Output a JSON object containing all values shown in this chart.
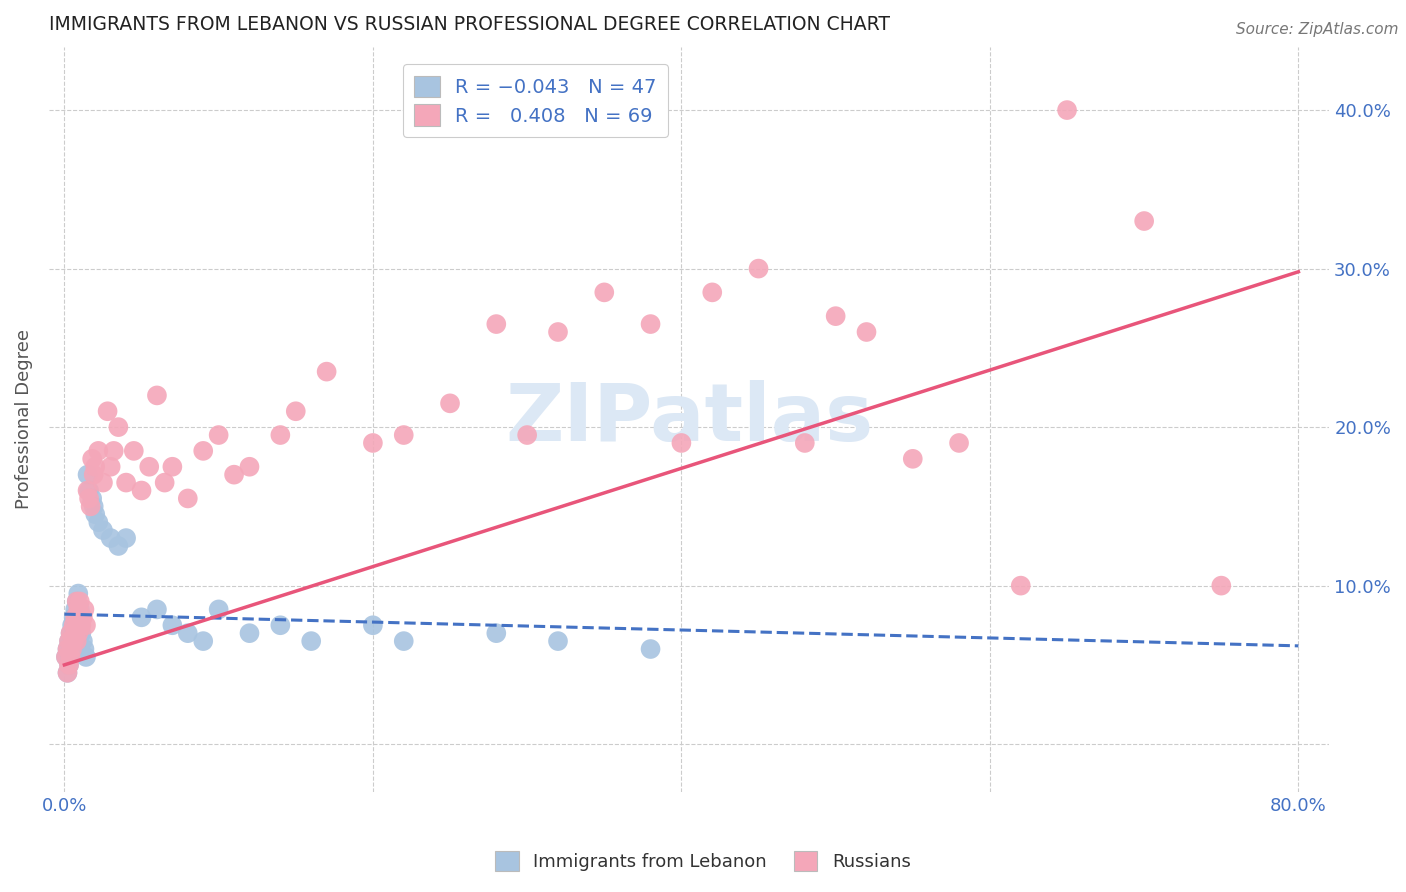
{
  "title": "IMMIGRANTS FROM LEBANON VS RUSSIAN PROFESSIONAL DEGREE CORRELATION CHART",
  "source": "Source: ZipAtlas.com",
  "ylabel": "Professional Degree",
  "color_lebanon": "#a8c4e0",
  "color_russia": "#f4a7b9",
  "trendline_lebanon_color": "#4472c4",
  "trendline_russia_color": "#e8557a",
  "watermark_color": "#dce8f5",
  "lebanon_x": [
    0.001,
    0.002,
    0.002,
    0.003,
    0.003,
    0.004,
    0.004,
    0.005,
    0.005,
    0.006,
    0.006,
    0.007,
    0.007,
    0.008,
    0.008,
    0.009,
    0.009,
    0.01,
    0.01,
    0.011,
    0.012,
    0.013,
    0.014,
    0.015,
    0.016,
    0.018,
    0.019,
    0.02,
    0.022,
    0.025,
    0.03,
    0.035,
    0.04,
    0.05,
    0.06,
    0.07,
    0.08,
    0.09,
    0.1,
    0.12,
    0.14,
    0.16,
    0.2,
    0.22,
    0.28,
    0.32,
    0.38
  ],
  "lebanon_y": [
    0.055,
    0.045,
    0.06,
    0.05,
    0.065,
    0.055,
    0.07,
    0.06,
    0.075,
    0.065,
    0.08,
    0.07,
    0.085,
    0.075,
    0.09,
    0.08,
    0.095,
    0.085,
    0.075,
    0.07,
    0.065,
    0.06,
    0.055,
    0.17,
    0.16,
    0.155,
    0.15,
    0.145,
    0.14,
    0.135,
    0.13,
    0.125,
    0.13,
    0.08,
    0.085,
    0.075,
    0.07,
    0.065,
    0.085,
    0.07,
    0.075,
    0.065,
    0.075,
    0.065,
    0.07,
    0.065,
    0.06
  ],
  "russia_x": [
    0.001,
    0.002,
    0.002,
    0.003,
    0.003,
    0.004,
    0.004,
    0.005,
    0.006,
    0.006,
    0.007,
    0.007,
    0.008,
    0.008,
    0.009,
    0.009,
    0.01,
    0.01,
    0.011,
    0.012,
    0.013,
    0.014,
    0.015,
    0.016,
    0.017,
    0.018,
    0.019,
    0.02,
    0.022,
    0.025,
    0.028,
    0.03,
    0.032,
    0.035,
    0.04,
    0.045,
    0.05,
    0.055,
    0.06,
    0.065,
    0.07,
    0.08,
    0.09,
    0.1,
    0.11,
    0.12,
    0.14,
    0.15,
    0.17,
    0.2,
    0.22,
    0.25,
    0.28,
    0.3,
    0.32,
    0.35,
    0.38,
    0.4,
    0.42,
    0.45,
    0.48,
    0.5,
    0.52,
    0.55,
    0.58,
    0.62,
    0.65,
    0.7,
    0.75
  ],
  "russia_y": [
    0.055,
    0.045,
    0.06,
    0.05,
    0.065,
    0.055,
    0.07,
    0.06,
    0.065,
    0.075,
    0.07,
    0.08,
    0.065,
    0.09,
    0.07,
    0.085,
    0.08,
    0.09,
    0.075,
    0.08,
    0.085,
    0.075,
    0.16,
    0.155,
    0.15,
    0.18,
    0.17,
    0.175,
    0.185,
    0.165,
    0.21,
    0.175,
    0.185,
    0.2,
    0.165,
    0.185,
    0.16,
    0.175,
    0.22,
    0.165,
    0.175,
    0.155,
    0.185,
    0.195,
    0.17,
    0.175,
    0.195,
    0.21,
    0.235,
    0.19,
    0.195,
    0.215,
    0.265,
    0.195,
    0.26,
    0.285,
    0.265,
    0.19,
    0.285,
    0.3,
    0.19,
    0.27,
    0.26,
    0.18,
    0.19,
    0.1,
    0.4,
    0.33,
    0.1
  ],
  "xlim_min": -0.01,
  "xlim_max": 0.82,
  "ylim_min": -0.03,
  "ylim_max": 0.44,
  "x_tick_positions": [
    0.0,
    0.2,
    0.4,
    0.6,
    0.8
  ],
  "x_tick_labels_show": [
    "0.0%",
    "80.0%"
  ],
  "y_tick_positions": [
    0.0,
    0.1,
    0.2,
    0.3,
    0.4
  ],
  "y_tick_labels_right": [
    "",
    "10.0%",
    "20.0%",
    "30.0%",
    "40.0%"
  ]
}
